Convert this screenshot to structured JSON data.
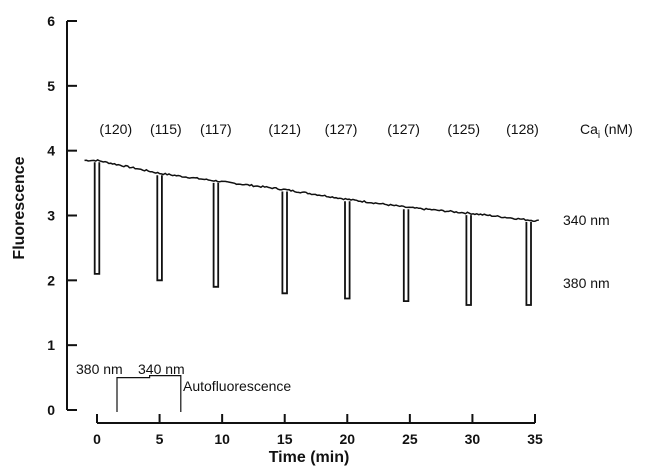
{
  "chart_data": {
    "type": "line",
    "title": "",
    "xlabel": "Time (min)",
    "ylabel": "Fluorescence",
    "xlim": [
      0,
      35
    ],
    "ylim": [
      0,
      6
    ],
    "x_ticks": [
      "0",
      "5",
      "10",
      "15",
      "20",
      "25",
      "30",
      "35"
    ],
    "y_ticks": [
      "0",
      "1",
      "2",
      "3",
      "4",
      "5",
      "6"
    ],
    "grid": false,
    "series": [
      {
        "name": "340 nm",
        "x": [
          0,
          5,
          10,
          15,
          20,
          25,
          30,
          35
        ],
        "y": [
          3.85,
          3.65,
          3.52,
          3.4,
          3.25,
          3.12,
          3.03,
          2.92
        ]
      },
      {
        "name": "380 nm",
        "x": [
          0.0,
          5.0,
          9.5,
          15.0,
          20.0,
          24.7,
          29.7,
          34.5
        ],
        "y": [
          2.1,
          2.0,
          1.9,
          1.8,
          1.72,
          1.68,
          1.62,
          1.62
        ]
      }
    ],
    "ca_label": "Ca",
    "ca_subscript": "i",
    "ca_unit": " (nM)",
    "ca_values": [
      {
        "text": "(120)",
        "x": 1.5
      },
      {
        "text": "(115)",
        "x": 5.5
      },
      {
        "text": "(117)",
        "x": 9.5
      },
      {
        "text": "(121)",
        "x": 15.0
      },
      {
        "text": "(127)",
        "x": 19.5
      },
      {
        "text": "(127)",
        "x": 24.5
      },
      {
        "text": "(125)",
        "x": 29.3
      },
      {
        "text": "(128)",
        "x": 34.0
      }
    ],
    "annotations": {
      "label_340": "340 nm",
      "label_380": "380 nm",
      "inset_380": "380 nm",
      "inset_340": "340 nm",
      "autofluorescence": "Autofluorescence"
    },
    "autofluorescence": {
      "x_start": 1.6,
      "x_mid": 4.2,
      "x_end": 6.7,
      "y_380": 0.5,
      "y_340": 0.5
    }
  }
}
